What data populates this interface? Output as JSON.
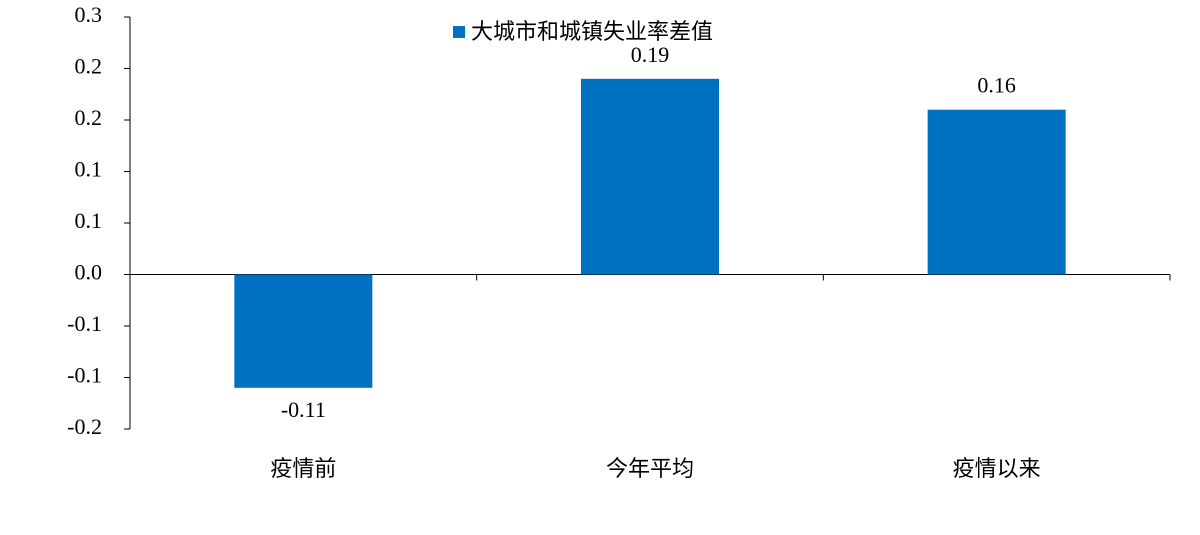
{
  "chart_data": {
    "type": "bar",
    "categories": [
      "疫情前",
      "今年平均",
      "疫情以来"
    ],
    "series": [
      {
        "name": "大城市和城镇失业率差值",
        "color": "#0070c0",
        "values": [
          -0.11,
          0.19,
          0.16
        ]
      }
    ],
    "ylim": [
      -0.15,
      0.25
    ],
    "yticks": [
      {
        "value": -0.15,
        "label": "-0.2"
      },
      -0.1,
      {
        "value": -0.05,
        "label": "-0.1"
      },
      {
        "value": 0,
        "label": "0.0"
      },
      {
        "value": 0.05,
        "label": "0.1"
      },
      0.1,
      {
        "value": 0.15,
        "label": "0.2"
      },
      0.2,
      {
        "value": 0.25,
        "label": "0.3"
      }
    ],
    "legend": "top"
  }
}
